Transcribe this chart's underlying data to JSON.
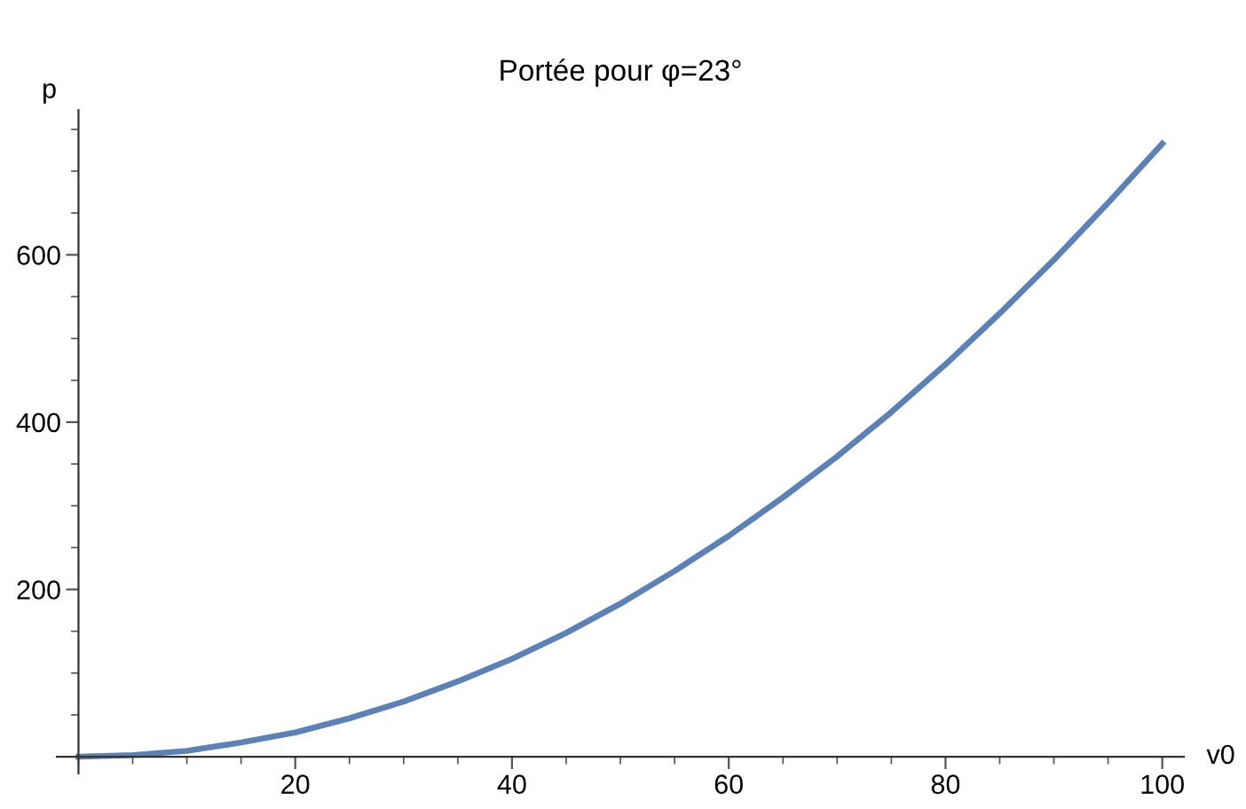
{
  "chart_data": {
    "type": "line",
    "title": "Portée pour φ=23°",
    "xlabel": "v0",
    "ylabel": "p",
    "x": [
      0,
      5,
      10,
      15,
      20,
      25,
      30,
      35,
      40,
      45,
      50,
      55,
      60,
      65,
      70,
      75,
      80,
      85,
      90,
      95,
      100
    ],
    "series": [
      {
        "color": "#5e81b5",
        "values": [
          0,
          2,
          7,
          17,
          29,
          46,
          66,
          90,
          117,
          148,
          183,
          222,
          264,
          310,
          359,
          412,
          469,
          530,
          594,
          662,
          733
        ]
      }
    ],
    "xlim": [
      -2,
      102
    ],
    "ylim": [
      -20,
      773
    ],
    "xticks": [
      20,
      40,
      60,
      80,
      100
    ],
    "yticks": [
      200,
      400,
      600
    ],
    "grid": false,
    "legend": false,
    "marker": "none",
    "line_style": "solid"
  }
}
